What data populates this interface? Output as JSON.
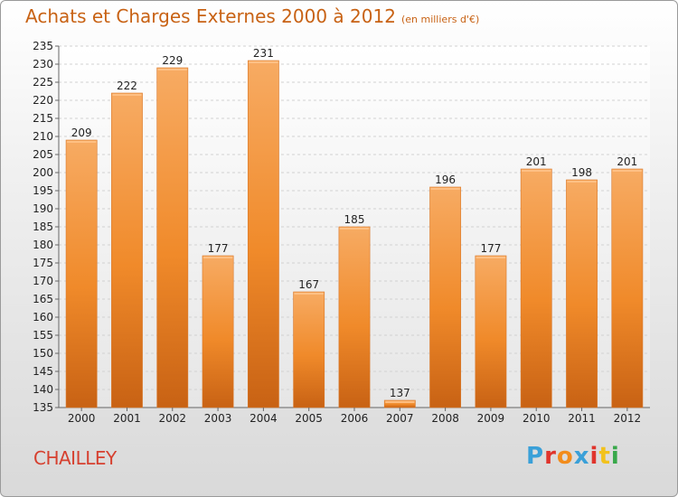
{
  "title": "Achats et Charges Externes 2000 à 2012",
  "unit": "(en milliers d'€)",
  "commune": "CHAILLEY",
  "logo": {
    "text": "Proxiti",
    "colors": [
      "#3aa0d8",
      "#e0342c",
      "#f28c1c",
      "#3aa0d8",
      "#e0342c",
      "#f2c21c",
      "#38a84a"
    ]
  },
  "colors": {
    "bar": "#f08a2a",
    "bar_light": "#f7ab63",
    "bar_dark": "#c86214",
    "title": "#c86214",
    "commune": "#d6402f"
  },
  "chart_data": {
    "type": "bar",
    "categories": [
      "2000",
      "2001",
      "2002",
      "2003",
      "2004",
      "2005",
      "2006",
      "2007",
      "2008",
      "2009",
      "2010",
      "2011",
      "2012"
    ],
    "values": [
      209,
      222,
      229,
      177,
      231,
      167,
      185,
      137,
      196,
      177,
      201,
      198,
      201
    ],
    "title": "Achats et Charges Externes 2000 à 2012",
    "xlabel": "",
    "ylabel": "",
    "ylim": [
      135,
      235
    ],
    "yticks": [
      135,
      140,
      145,
      150,
      155,
      160,
      165,
      170,
      175,
      180,
      185,
      190,
      195,
      200,
      205,
      210,
      215,
      220,
      225,
      230,
      235
    ],
    "grid": true,
    "data_labels": true
  }
}
